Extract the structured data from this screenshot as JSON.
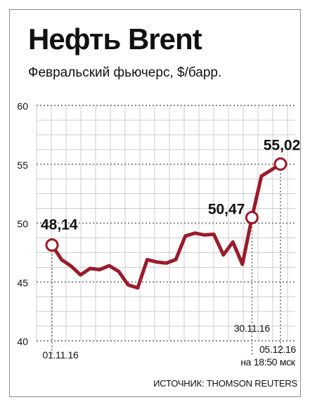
{
  "header": {
    "title": "Нефть Brent",
    "subtitle": "Февральский фьючерс, $/барр."
  },
  "source": "ИСТОЧНИК: THOMSON REUTERS",
  "colors": {
    "line": "#9b1b2b",
    "grid_minor": "#cccccc",
    "grid_major": "#888888",
    "frame": "#888888",
    "text": "#111111"
  },
  "chart_data": {
    "type": "line",
    "title": "Нефть Brent",
    "subtitle": "Февральский фьючерс, $/барр.",
    "ylim": [
      40,
      60
    ],
    "yticks": [
      40,
      45,
      50,
      55,
      60
    ],
    "grid": true,
    "series": [
      {
        "values": [
          48.14,
          46.9,
          46.35,
          45.6,
          46.15,
          46.05,
          46.38,
          45.9,
          44.75,
          44.5,
          46.9,
          46.7,
          46.6,
          46.9,
          48.9,
          49.15,
          49.0,
          49.05,
          47.3,
          48.4,
          46.5,
          50.47,
          54.0,
          54.5,
          55.02
        ]
      }
    ],
    "x_labels": [
      {
        "index": 0,
        "text": "01.11.16"
      },
      {
        "index": 21,
        "text": "30.11.16"
      },
      {
        "index": 24,
        "text": "05.12.16",
        "sub": "на 18:50 мск"
      }
    ],
    "annotations": [
      {
        "index": 0,
        "text": "48,14"
      },
      {
        "index": 21,
        "text": "50,47"
      },
      {
        "index": 24,
        "text": "55,02"
      }
    ]
  }
}
